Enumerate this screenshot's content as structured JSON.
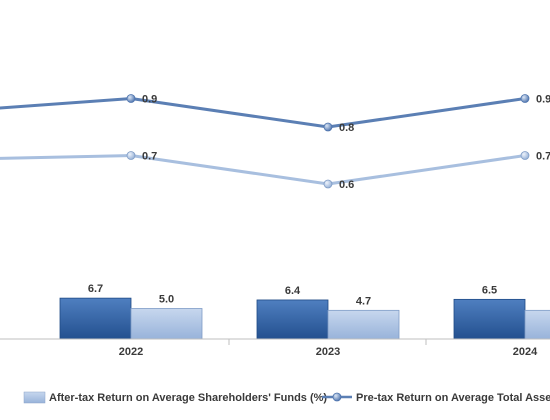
{
  "chart_data": [
    {
      "type": "line",
      "categories": [
        "",
        "2022",
        "2023",
        "2024"
      ],
      "series": [
        {
          "name": "Pre-tax Return on Average Total Assets (%)",
          "values": [
            null,
            0.9,
            0.8,
            0.9
          ],
          "color": "#5b7fb4"
        },
        {
          "name": "",
          "values": [
            null,
            0.7,
            0.6,
            0.7
          ],
          "color": "#a8bfdf"
        }
      ],
      "point_labels": [
        [
          "",
          "0.9",
          "0.8",
          "0.9"
        ],
        [
          "",
          "0.7",
          "0.6",
          "0.7"
        ]
      ],
      "ylim": [
        0.4,
        1.2
      ]
    },
    {
      "type": "bar",
      "categories": [
        "",
        "2022",
        "2023",
        "2024"
      ],
      "series": [
        {
          "name": "",
          "values": [
            null,
            6.7,
            6.4,
            6.5
          ],
          "color": "#2e5d9f"
        },
        {
          "name": "After-tax Return on Average Shareholders' Funds (%)",
          "values": [
            null,
            5.0,
            4.7,
            4.7
          ],
          "color": "#a8bfdf"
        }
      ],
      "bar_labels": [
        [
          "",
          "6.7",
          "6.4",
          "6.5"
        ],
        [
          "",
          "5.0",
          "4.7",
          ""
        ]
      ],
      "ylim": [
        0,
        10
      ]
    }
  ],
  "legend": {
    "bar_entry": "After-tax Return on Average Shareholders' Funds (%)",
    "line_entry": "Pre-tax Return on Average Total Assets (%"
  }
}
